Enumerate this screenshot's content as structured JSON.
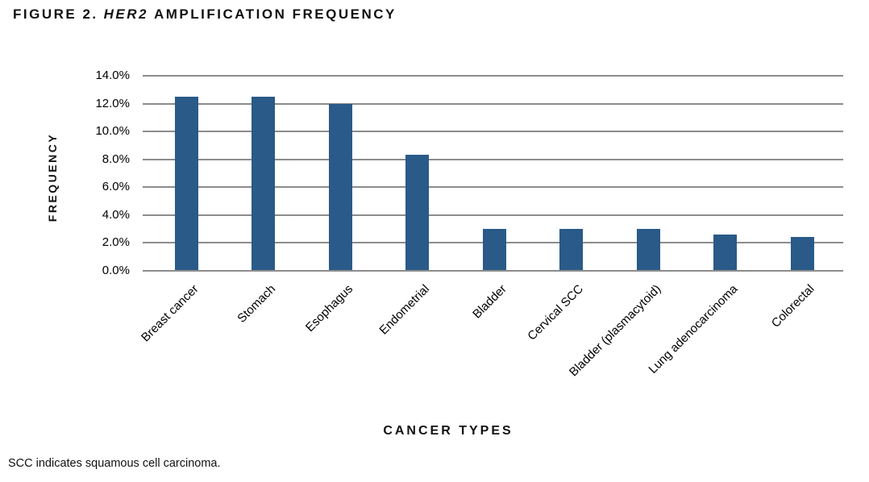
{
  "figure": {
    "title_prefix": "FIGURE 2.",
    "title_gene": "HER2",
    "title_rest": "AMPLIFICATION FREQUENCY",
    "footnote": "SCC indicates squamous cell carcinoma."
  },
  "chart_data": {
    "type": "bar",
    "title": "FIGURE 2. HER2 AMPLIFICATION FREQUENCY",
    "xlabel": "CANCER TYPES",
    "ylabel": "FREQUENCY",
    "categories": [
      "Breast cancer",
      "Stomach",
      "Esophagus",
      "Endometrial",
      "Bladder",
      "Cervical SCC",
      "Bladder (plasmacytoid)",
      "Lung adenocarcinoma",
      "Colorectal"
    ],
    "values": [
      12.5,
      12.5,
      12.0,
      8.3,
      3.0,
      3.0,
      3.0,
      2.6,
      2.4
    ],
    "unit": "%",
    "ylim": [
      0,
      14
    ],
    "y_tick_step": 2,
    "y_ticks": [
      "0.0%",
      "2.0%",
      "4.0%",
      "6.0%",
      "8.0%",
      "10.0%",
      "12.0%",
      "14.0%"
    ],
    "grid": true,
    "legend": "none",
    "bar_color": "#295A88",
    "grid_color": "#8C8C8C"
  }
}
